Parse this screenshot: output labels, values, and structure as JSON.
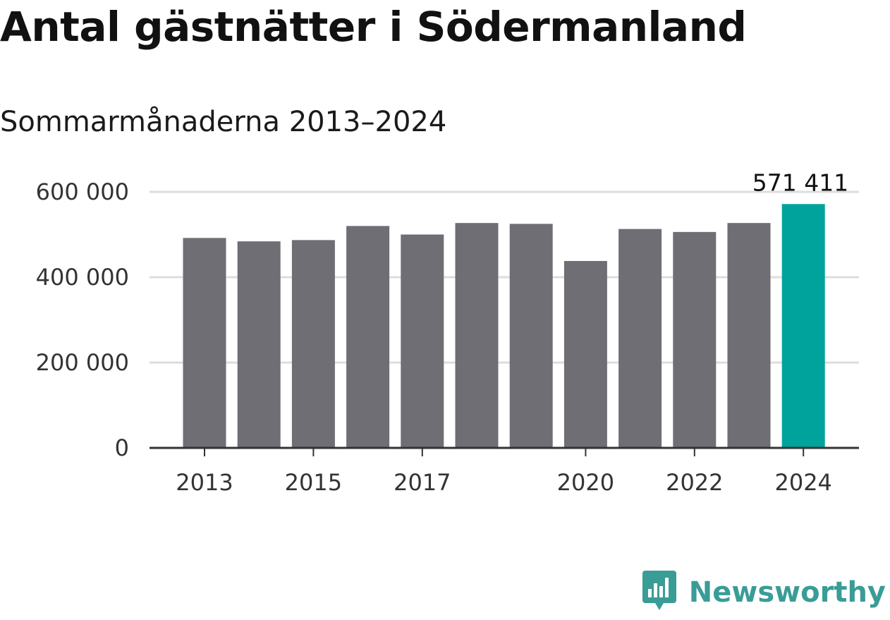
{
  "title": "Antal gästnätter i Södermanland",
  "subtitle": "Sommarmånaderna 2013–2024",
  "brand": {
    "name": "Newsworthy",
    "color": "#3a9c96",
    "icon": "bar-chart-badge-icon"
  },
  "colors": {
    "bar": "#6f6e75",
    "highlight": "#00a39b",
    "grid": "#dddddd",
    "axis": "#333333"
  },
  "chart_data": {
    "type": "bar",
    "title": "Antal gästnätter i Södermanland",
    "subtitle": "Sommarmånaderna 2013–2024",
    "xlabel": "",
    "ylabel": "",
    "categories": [
      "2013",
      "2014",
      "2015",
      "2016",
      "2017",
      "2018",
      "2019",
      "2020",
      "2021",
      "2022",
      "2023",
      "2024"
    ],
    "values": [
      492000,
      484000,
      487000,
      520000,
      500000,
      527000,
      525000,
      438000,
      513000,
      506000,
      527000,
      571411
    ],
    "highlight_index": 11,
    "ylim": [
      0,
      600000
    ],
    "yticks": [
      0,
      200000,
      400000,
      600000
    ],
    "ytick_labels": [
      "0",
      "200 000",
      "400 000",
      "600 000"
    ],
    "xtick_labels": [
      "2013",
      "",
      "2015",
      "",
      "2017",
      "",
      "",
      "2020",
      "",
      "2022",
      "",
      "2024"
    ],
    "data_labels": [
      {
        "index": 11,
        "text": "571 411"
      }
    ],
    "grid": true
  }
}
